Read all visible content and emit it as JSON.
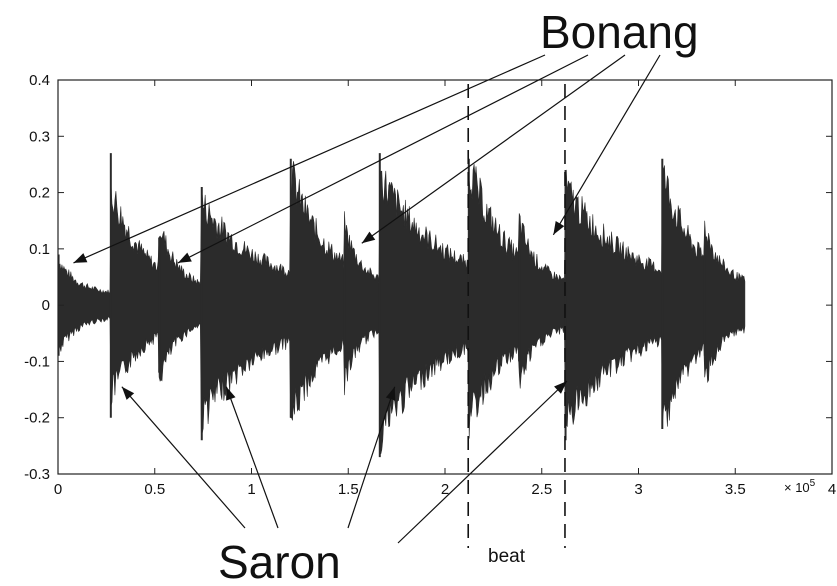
{
  "chart_data": {
    "type": "line",
    "title": "",
    "xlabel": "",
    "ylabel": "",
    "x_multiplier": "× 10^5",
    "xlim": [
      0,
      4
    ],
    "ylim": [
      -0.3,
      0.4
    ],
    "x_ticks": [
      "0",
      "0.5",
      "1",
      "1.5",
      "2",
      "2.5",
      "3",
      "3.5",
      "4"
    ],
    "y_ticks": [
      "0.4",
      "0.3",
      "0.2",
      "0.1",
      "0",
      "-0.1",
      "-0.2",
      "-0.3"
    ],
    "x_tick_values": [
      0,
      0.5,
      1,
      1.5,
      2,
      2.5,
      3,
      3.5,
      4
    ],
    "y_tick_values": [
      0.4,
      0.3,
      0.2,
      0.1,
      0,
      -0.1,
      -0.2,
      -0.3
    ],
    "grid": false,
    "series_color": "#2b2b2b",
    "waveform_extent_x": [
      0,
      3.55
    ],
    "onsets": [
      {
        "x": 0.0,
        "peak": 0.09,
        "trough": -0.09,
        "decay": 0.1,
        "instrument": "bonang"
      },
      {
        "x": 0.27,
        "peak": 0.27,
        "trough": -0.2,
        "decay": 0.18,
        "instrument": "saron"
      },
      {
        "x": 0.52,
        "peak": 0.12,
        "trough": -0.12,
        "decay": 0.08,
        "instrument": "bonang"
      },
      {
        "x": 0.74,
        "peak": 0.21,
        "trough": -0.24,
        "decay": 0.35,
        "instrument": "saron"
      },
      {
        "x": 1.2,
        "peak": 0.26,
        "trough": -0.2,
        "decay": 0.18,
        "instrument": "saron"
      },
      {
        "x": 1.48,
        "peak": 0.1,
        "trough": -0.1,
        "decay": 0.06,
        "instrument": "bonang"
      },
      {
        "x": 1.66,
        "peak": 0.27,
        "trough": -0.27,
        "decay": 0.35,
        "instrument": "saron"
      },
      {
        "x": 2.12,
        "peak": 0.26,
        "trough": -0.2,
        "decay": 0.18,
        "instrument": "saron"
      },
      {
        "x": 2.38,
        "peak": 0.1,
        "trough": -0.1,
        "decay": 0.06,
        "instrument": "bonang"
      },
      {
        "x": 2.62,
        "peak": 0.24,
        "trough": -0.24,
        "decay": 0.35,
        "instrument": "saron"
      },
      {
        "x": 3.12,
        "peak": 0.26,
        "trough": -0.22,
        "decay": 0.15,
        "instrument": "saron"
      },
      {
        "x": 3.34,
        "peak": 0.09,
        "trough": -0.09,
        "decay": 0.06,
        "instrument": "bonang"
      }
    ],
    "beat_lines_x": [
      2.12,
      2.62
    ],
    "annotations": {
      "bonang_label": "Bonang",
      "saron_label": "Saron",
      "beat_label": "beat",
      "bonang_targets": [
        {
          "x": 0.08,
          "y": 0.075
        },
        {
          "x": 0.62,
          "y": 0.075
        },
        {
          "x": 1.57,
          "y": 0.11
        },
        {
          "x": 2.56,
          "y": 0.125
        }
      ],
      "saron_targets": [
        {
          "x": 0.33,
          "y": -0.145
        },
        {
          "x": 0.87,
          "y": -0.145
        },
        {
          "x": 1.74,
          "y": -0.145
        },
        {
          "x": 2.63,
          "y": -0.135
        }
      ]
    }
  }
}
